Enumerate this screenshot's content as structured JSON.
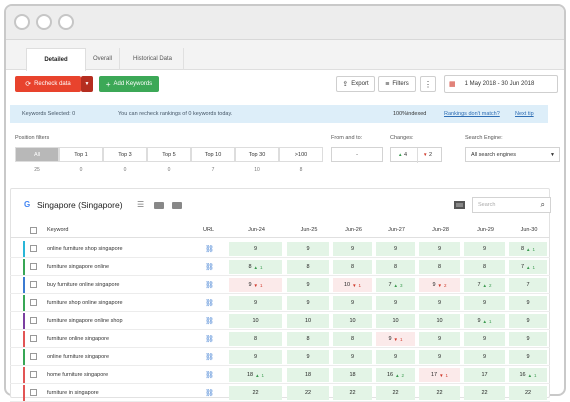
{
  "tabs": [
    "Detailed",
    "Overall",
    "Historical Data"
  ],
  "toolbar": {
    "recheck_label": "Recheck data",
    "add_label": "Add Keywords",
    "export_label": "Export",
    "filters_label": "Filters",
    "more_label": "⋮",
    "date_range": "1 May 2018 - 30 Jun 2018"
  },
  "info": {
    "selected": "Keywords Selected: 0",
    "recheck": "You can recheck rankings of 0 keywords today.",
    "indexed": "100%indexed",
    "mismatch": "Rankings don't match?",
    "next_tip": "Next tip"
  },
  "filters": {
    "position_label": "Position filters",
    "positions": [
      {
        "label": "All",
        "count": "25"
      },
      {
        "label": "Top 1",
        "count": "0"
      },
      {
        "label": "Top 3",
        "count": "0"
      },
      {
        "label": "Top 5",
        "count": "0"
      },
      {
        "label": "Top 10",
        "count": "7"
      },
      {
        "label": "Top 30",
        "count": "10"
      },
      {
        "label": ">100",
        "count": "8"
      }
    ],
    "from_label": "From and to:",
    "from_value": "-",
    "changes_label": "Changes:",
    "changes_up": "4",
    "changes_down": "2",
    "engine_label": "Search Engine:",
    "engine_value": "All search engines"
  },
  "table": {
    "location": "Singapore (Singapore)",
    "search_placeholder": "Search",
    "headers": {
      "keyword": "Keyword",
      "url": "URL",
      "dates": [
        "Jun-24",
        "Jun-25",
        "Jun-26",
        "Jun-27",
        "Jun-28",
        "Jun-29",
        "Jun-30"
      ]
    },
    "rows": [
      {
        "keyword": "online furniture shop singapore",
        "color": "#29b6d8",
        "cells": [
          {
            "v": "9"
          },
          {
            "v": "9"
          },
          {
            "v": "9"
          },
          {
            "v": "9"
          },
          {
            "v": "9"
          },
          {
            "v": "9"
          },
          {
            "v": "8",
            "d": "1",
            "t": "up"
          }
        ]
      },
      {
        "keyword": "furniture singapore online",
        "color": "#37a655",
        "cells": [
          {
            "v": "8",
            "d": "1",
            "t": "up"
          },
          {
            "v": "8"
          },
          {
            "v": "8"
          },
          {
            "v": "8"
          },
          {
            "v": "8"
          },
          {
            "v": "8"
          },
          {
            "v": "7",
            "d": "1",
            "t": "up"
          }
        ]
      },
      {
        "keyword": "buy furniture online singapore",
        "color": "#3b7bd1",
        "cells": [
          {
            "v": "9",
            "d": "1",
            "t": "dn"
          },
          {
            "v": "9"
          },
          {
            "v": "10",
            "d": "1",
            "t": "dn"
          },
          {
            "v": "7",
            "d": "3",
            "t": "up"
          },
          {
            "v": "9",
            "d": "2",
            "t": "dn"
          },
          {
            "v": "7",
            "d": "2",
            "t": "up"
          },
          {
            "v": "7"
          }
        ]
      },
      {
        "keyword": "furniture shop online singapore",
        "color": "#37a655",
        "cells": [
          {
            "v": "9"
          },
          {
            "v": "9"
          },
          {
            "v": "9"
          },
          {
            "v": "9"
          },
          {
            "v": "9"
          },
          {
            "v": "9"
          },
          {
            "v": "9"
          }
        ]
      },
      {
        "keyword": "furniture singapore online shop",
        "color": "#7b3fa0",
        "cells": [
          {
            "v": "10"
          },
          {
            "v": "10"
          },
          {
            "v": "10"
          },
          {
            "v": "10"
          },
          {
            "v": "10"
          },
          {
            "v": "9",
            "d": "1",
            "t": "up"
          },
          {
            "v": "9"
          }
        ]
      },
      {
        "keyword": "furniture online singapore",
        "color": "#e25555",
        "cells": [
          {
            "v": "8"
          },
          {
            "v": "8"
          },
          {
            "v": "8"
          },
          {
            "v": "9",
            "d": "1",
            "t": "dn"
          },
          {
            "v": "9"
          },
          {
            "v": "9"
          },
          {
            "v": "9"
          }
        ]
      },
      {
        "keyword": "online furniture singapore",
        "color": "#37a655",
        "cells": [
          {
            "v": "9"
          },
          {
            "v": "9"
          },
          {
            "v": "9"
          },
          {
            "v": "9"
          },
          {
            "v": "9"
          },
          {
            "v": "9"
          },
          {
            "v": "9"
          }
        ]
      },
      {
        "keyword": "home furniture singapore",
        "color": "#e25555",
        "cells": [
          {
            "v": "18",
            "d": "1",
            "t": "up"
          },
          {
            "v": "18"
          },
          {
            "v": "18"
          },
          {
            "v": "16",
            "d": "2",
            "t": "up"
          },
          {
            "v": "17",
            "d": "1",
            "t": "dn"
          },
          {
            "v": "17"
          },
          {
            "v": "16",
            "d": "1",
            "t": "up"
          }
        ]
      },
      {
        "keyword": "furniture in singapore",
        "color": "#e25555",
        "cells": [
          {
            "v": "22"
          },
          {
            "v": "22"
          },
          {
            "v": "22"
          },
          {
            "v": "22"
          },
          {
            "v": "22"
          },
          {
            "v": "22"
          },
          {
            "v": "22"
          }
        ]
      }
    ]
  }
}
